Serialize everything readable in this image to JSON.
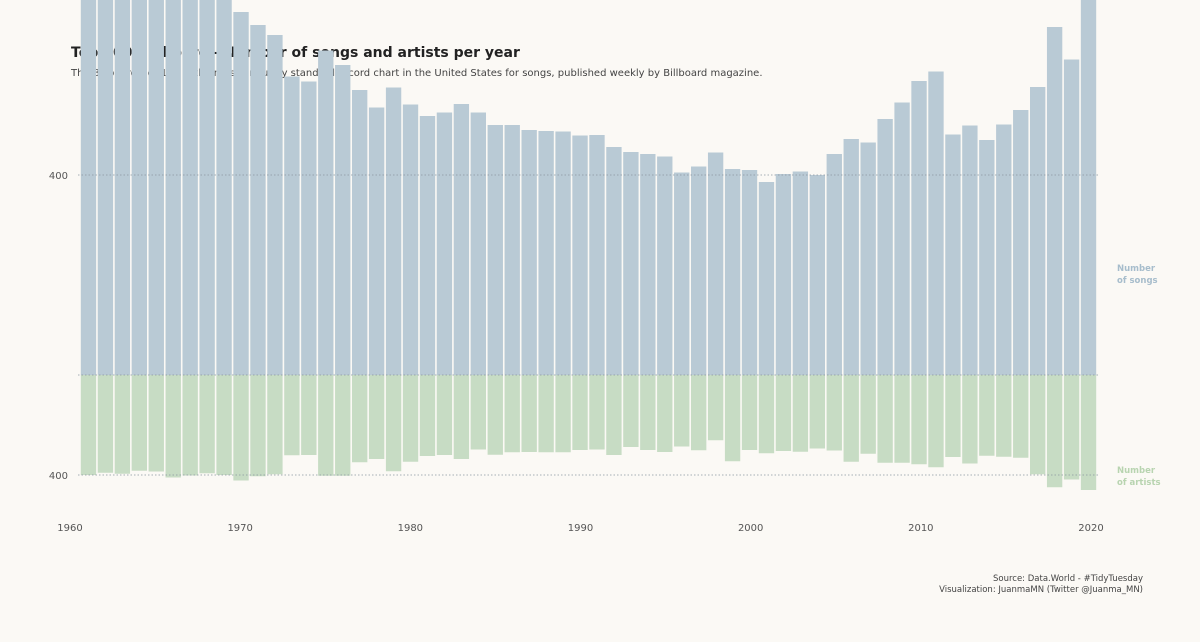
{
  "title": "Top 100 Billboard - Number of songs and artists per year",
  "subtitle": "The Billboard Hot 100 is the music industry standard record chart in the United States for songs, published weekly by Billboard magazine.",
  "caption": {
    "source": "Source:  Data.World - #TidyTuesday",
    "visualization": "Visualization: JuanmaMN (Twitter @Juanma_MN)"
  },
  "colors": {
    "songs": "#b9cad5",
    "artists": "#c7dcc4",
    "songs_label": "#a7bdcc",
    "artists_label": "#b8d4b0",
    "background": "#fbf9f5"
  },
  "chart_data": {
    "type": "bar",
    "x_ticks": [
      "1960",
      "1970",
      "1980",
      "1990",
      "2000",
      "2010",
      "2020"
    ],
    "y_tick_labels": {
      "songs": "400",
      "artists": "400"
    },
    "side_labels": {
      "songs": [
        "Number",
        "of songs"
      ],
      "artists": [
        "Number",
        "of artists"
      ]
    },
    "years": [
      1961,
      1962,
      1963,
      1964,
      1965,
      1966,
      1967,
      1968,
      1969,
      1970,
      1971,
      1972,
      1973,
      1974,
      1975,
      1976,
      1977,
      1978,
      1979,
      1980,
      1981,
      1982,
      1983,
      1984,
      1985,
      1986,
      1987,
      1988,
      1989,
      1990,
      1991,
      1992,
      1993,
      1994,
      1995,
      1996,
      1997,
      1998,
      1999,
      2000,
      2001,
      2002,
      2003,
      2004,
      2005,
      2006,
      2007,
      2008,
      2009,
      2010,
      2011,
      2012,
      2013,
      2014,
      2015,
      2016,
      2017,
      2018,
      2019,
      2020
    ],
    "series": [
      {
        "name": "Number of songs",
        "values": [
          783,
          775,
          768,
          805,
          797,
          820,
          817,
          774,
          766,
          726,
          700,
          680,
          597,
          587,
          649,
          620,
          570,
          535,
          575,
          541,
          518,
          525,
          542,
          525,
          500,
          500,
          490,
          488,
          487,
          479,
          480,
          456,
          446,
          442,
          437,
          405,
          417,
          445,
          412,
          410,
          386,
          402,
          407,
          400,
          442,
          472,
          465,
          512,
          545,
          588,
          607,
          481,
          499,
          470,
          501,
          530,
          576,
          696,
          631,
          803
        ],
        "ylim_top": 800
      },
      {
        "name": "Number of artists",
        "values": [
          400,
          391,
          395,
          383,
          386,
          410,
          402,
          393,
          400,
          422,
          405,
          397,
          321,
          320,
          403,
          403,
          349,
          336,
          385,
          347,
          324,
          320,
          336,
          298,
          319,
          309,
          308,
          309,
          309,
          300,
          298,
          320,
          288,
          300,
          308,
          286,
          301,
          261,
          345,
          300,
          313,
          304,
          307,
          294,
          302,
          347,
          315,
          351,
          351,
          357,
          369,
          328,
          354,
          323,
          327,
          331,
          397,
          449,
          418,
          460
        ],
        "ylim_bottom": 800
      }
    ],
    "reference_line_value": 400
  }
}
